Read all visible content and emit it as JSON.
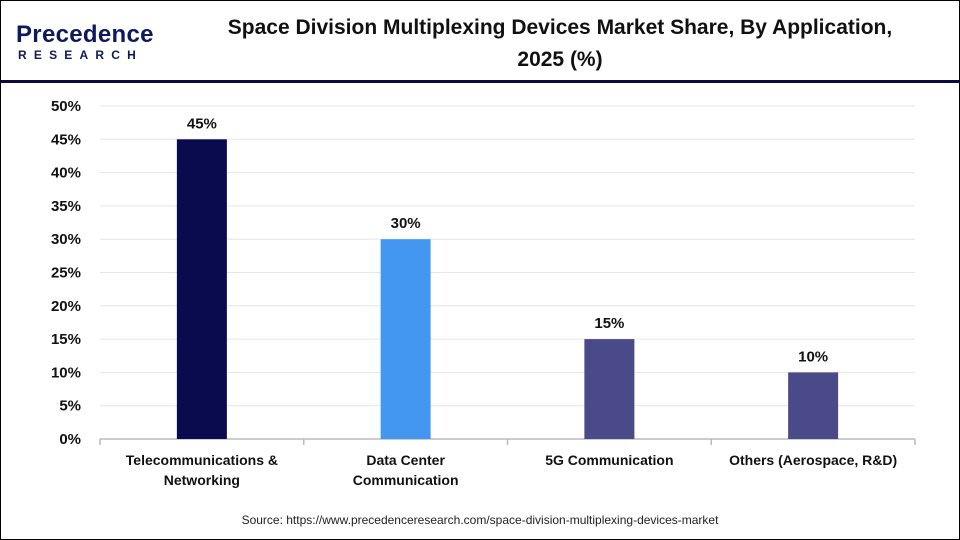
{
  "logo": {
    "line1": "Precedence",
    "line2": "RESEARCH"
  },
  "title": "Space Division Multiplexing Devices Market Share, By Application, 2025 (%)",
  "source": "Source: https://www.precedenceresearch.com/space-division-multiplexing-devices-market",
  "chart_data": {
    "type": "bar",
    "title": "Space Division Multiplexing Devices Market Share, By Application, 2025 (%)",
    "categories": [
      [
        "Telecommunications &",
        "Networking"
      ],
      [
        "Data Center",
        "Communication"
      ],
      [
        "5G Communication"
      ],
      [
        "Others (Aerospace, R&D)"
      ]
    ],
    "values": [
      45,
      30,
      15,
      10
    ],
    "data_labels": [
      "45%",
      "30%",
      "15%",
      "10%"
    ],
    "colors": [
      "#0a0a4f",
      "#4497f0",
      "#4a4a89",
      "#4a4a89"
    ],
    "ylim": [
      0,
      50
    ],
    "yticks": [
      "0%",
      "5%",
      "10%",
      "15%",
      "20%",
      "25%",
      "30%",
      "35%",
      "40%",
      "45%",
      "50%"
    ],
    "grid": true
  }
}
